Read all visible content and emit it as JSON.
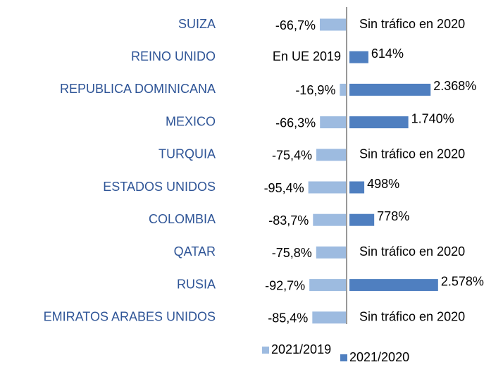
{
  "chart_data": {
    "type": "diverging-bar",
    "categories": [
      "SUIZA",
      "REINO UNIDO",
      "REPUBLICA DOMINICANA",
      "MEXICO",
      "TURQUIA",
      "ESTADOS UNIDOS",
      "COLOMBIA",
      "QATAR",
      "RUSIA",
      "EMIRATOS ARABES UNIDOS"
    ],
    "xlim": [
      -100,
      0
    ],
    "x2lim": [
      0,
      2800
    ],
    "series": [
      {
        "name": "2021/2019",
        "color": "#9dbbe0",
        "axis": "x",
        "values": [
          -66.7,
          null,
          -16.9,
          -66.3,
          -75.4,
          -95.4,
          -83.7,
          -75.8,
          -92.7,
          -85.4
        ],
        "value_labels": [
          "-66,7%",
          "En UE 2019",
          "-16,9%",
          "-66,3%",
          "-75,4%",
          "-95,4%",
          "-83,7%",
          "-75,8%",
          "-92,7%",
          "-85,4%"
        ]
      },
      {
        "name": "2021/2020",
        "color": "#4f7fc0",
        "axis": "x2",
        "values": [
          null,
          614,
          2368,
          1740,
          null,
          498,
          778,
          null,
          2578,
          null
        ],
        "value_labels": [
          "Sin tráfico en 2020",
          "614%",
          "2.368%",
          "1.740%",
          "Sin tráfico en 2020",
          "498%",
          "778%",
          "Sin tráfico en 2020",
          "2.578%",
          "Sin tráfico en 2020"
        ]
      }
    ]
  }
}
